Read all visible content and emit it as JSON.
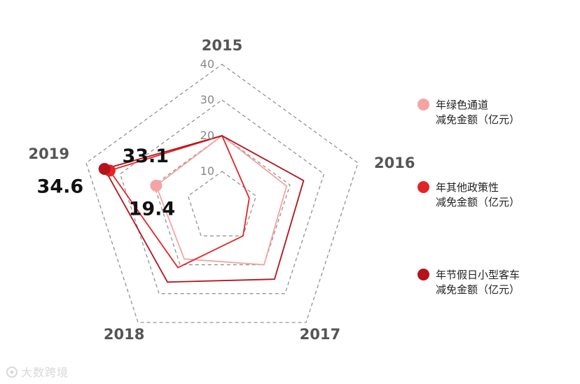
{
  "chart_data": {
    "type": "radar",
    "categories": [
      "2015",
      "2016",
      "2017",
      "2018",
      "2019"
    ],
    "rlim": [
      0,
      40
    ],
    "rticks": [
      10,
      20,
      30,
      40
    ],
    "series": [
      {
        "name_lines": [
          "年绿色通道",
          "减免金额（亿元）"
        ],
        "color": "#f5a3a3",
        "values": [
          20,
          19,
          20,
          18,
          19.4
        ]
      },
      {
        "name_lines": [
          "年其他政策性",
          "减免金额（亿元）"
        ],
        "color": "#e32424",
        "values": [
          20,
          8,
          10,
          21,
          33.1
        ]
      },
      {
        "name_lines": [
          "年节假日小型客车",
          "减免金额（亿元）"
        ],
        "color": "#b5121b",
        "values": [
          20,
          24,
          25,
          26,
          34.6
        ]
      }
    ],
    "annotations": [
      {
        "text": "33.1",
        "series": 1,
        "category": "2019"
      },
      {
        "text": "34.6",
        "series": 2,
        "category": "2019"
      },
      {
        "text": "19.4",
        "series": 0,
        "category": "2019"
      }
    ],
    "grid": true,
    "legend_position": "right"
  },
  "watermark": "大数跨境"
}
